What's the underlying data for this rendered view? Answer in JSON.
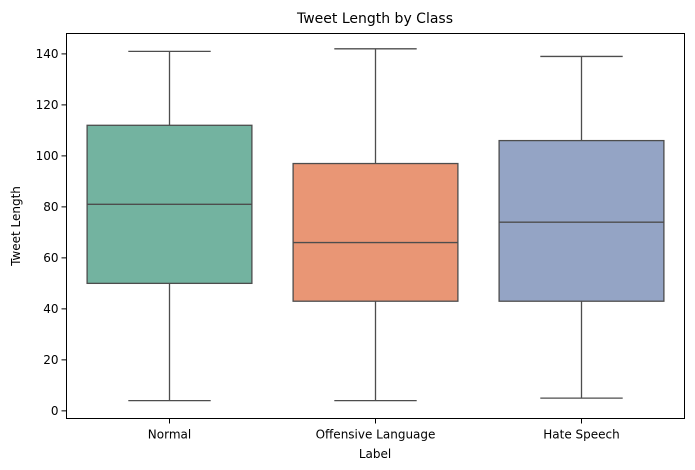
{
  "chart_data": {
    "type": "box",
    "title": "Tweet Length by Class",
    "xlabel": "Label",
    "ylabel": "Tweet Length",
    "ylim": [
      -3,
      148
    ],
    "yticks": [
      0,
      20,
      40,
      60,
      80,
      100,
      120,
      140
    ],
    "grid": false,
    "categories": [
      "Normal",
      "Offensive Language",
      "Hate Speech"
    ],
    "boxes": [
      {
        "category": "Normal",
        "whisker_low": 4,
        "q1": 50,
        "median": 81,
        "q3": 112,
        "whisker_high": 141,
        "color": "#73b3a0"
      },
      {
        "category": "Offensive Language",
        "whisker_low": 4,
        "q1": 43,
        "median": 66,
        "q3": 97,
        "whisker_high": 142,
        "color": "#e99675"
      },
      {
        "category": "Hate Speech",
        "whisker_low": 5,
        "q1": 43,
        "median": 74,
        "q3": 106,
        "whisker_high": 139,
        "color": "#94a4c5"
      }
    ],
    "line_color": "#4d4d4d"
  }
}
